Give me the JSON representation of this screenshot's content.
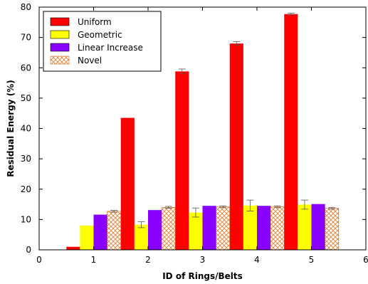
{
  "chart_data": {
    "type": "bar",
    "xlabel": "ID of Rings/Belts",
    "ylabel": "Residual Energy (%)",
    "xlim": [
      0,
      6
    ],
    "ylim": [
      0,
      80
    ],
    "x_ticks": [
      "0",
      "1",
      "2",
      "3",
      "4",
      "5",
      "6"
    ],
    "y_ticks": [
      "0",
      "10",
      "20",
      "30",
      "40",
      "50",
      "60",
      "70",
      "80"
    ],
    "categories": [
      "1",
      "2",
      "3",
      "4",
      "5"
    ],
    "legend_position": "top-left",
    "grid": false,
    "series": [
      {
        "name": "Uniform",
        "color": "#ff0000",
        "pattern": "solid",
        "values": [
          1.0,
          43.5,
          58.8,
          68.0,
          77.7
        ],
        "errors": [
          0,
          0,
          0.8,
          0.6,
          0.3
        ]
      },
      {
        "name": "Geometric",
        "color": "#ffff00",
        "pattern": "solid",
        "values": [
          8.0,
          8.3,
          12.3,
          14.6,
          14.9
        ],
        "errors": [
          0,
          1.0,
          1.5,
          1.8,
          1.5
        ]
      },
      {
        "name": "Linear Increase",
        "color": "#8800ff",
        "pattern": "solid",
        "values": [
          11.6,
          13.1,
          14.5,
          14.5,
          15.1
        ],
        "errors": [
          0,
          0,
          0,
          0,
          0
        ]
      },
      {
        "name": "Novel",
        "color": "#e87a2a",
        "pattern": "crosshatch",
        "values": [
          12.7,
          14.0,
          14.2,
          14.2,
          13.7
        ],
        "errors": [
          0.3,
          0.3,
          0.3,
          0.3,
          0.3
        ]
      }
    ]
  }
}
